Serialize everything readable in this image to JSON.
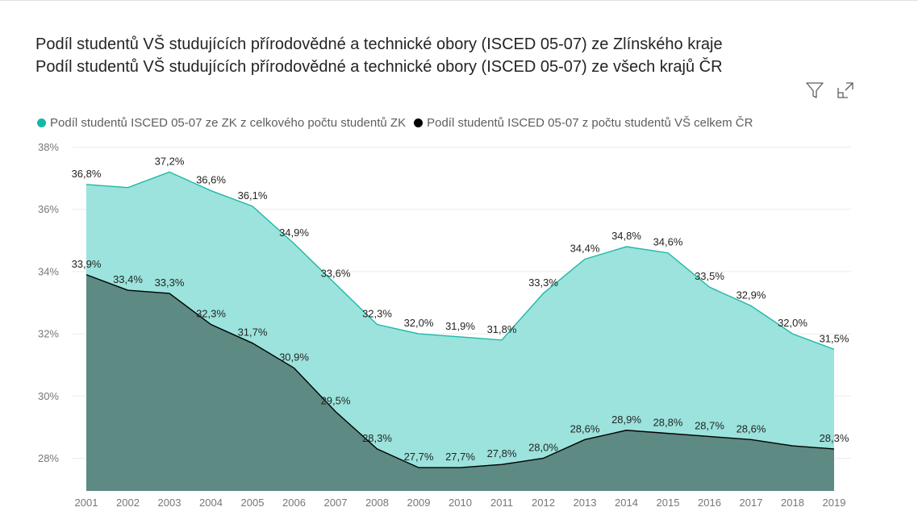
{
  "header": {
    "title_line_1": "Podíl studentů VŠ studujících přírodovědné a technické obory (ISCED 05-07) ze Zlínského kraje",
    "title_line_2": "Podíl studentů VŠ studujících přírodovědné a technické obory (ISCED 05-07) ze všech krajů ČR",
    "filter_icon": "filter-icon",
    "focus_icon": "focus-mode-icon"
  },
  "legend": {
    "items": [
      {
        "label": "Podíl studentů ISCED 05-07 ze ZK z celkového počtu studentů ZK",
        "color": "#14b8a6"
      },
      {
        "label": "Podíl studentů ISCED 05-07 z počtu studentů VŠ celkem ČR",
        "color": "#000000"
      }
    ]
  },
  "chart_data": {
    "type": "area",
    "x": [
      "2001",
      "2002",
      "2003",
      "2004",
      "2005",
      "2006",
      "2007",
      "2008",
      "2009",
      "2010",
      "2011",
      "2012",
      "2013",
      "2014",
      "2015",
      "2016",
      "2017",
      "2018",
      "2019"
    ],
    "ylim": [
      27,
      38
    ],
    "y_ticks": [
      28,
      30,
      32,
      34,
      36,
      38
    ],
    "y_tick_labels": [
      "28%",
      "30%",
      "32%",
      "34%",
      "36%",
      "38%"
    ],
    "grid": true,
    "legend_position": "top-left",
    "series": [
      {
        "name": "Podíl studentů ISCED 05-07 ze ZK z celkového počtu studentů ZK",
        "color": "#1fb8a8",
        "fill": "#9be3dc",
        "values": [
          36.8,
          36.7,
          37.2,
          36.6,
          36.1,
          34.9,
          33.6,
          32.3,
          32.0,
          31.9,
          31.8,
          33.3,
          34.4,
          34.8,
          34.6,
          33.5,
          32.9,
          32.0,
          31.5
        ],
        "labels": [
          "36,8%",
          null,
          "37,2%",
          "36,6%",
          "36,1%",
          "34,9%",
          "33,6%",
          "32,3%",
          "32,0%",
          "31,9%",
          "31,8%",
          "33,3%",
          "34,4%",
          "34,8%",
          "34,6%",
          "33,5%",
          "32,9%",
          "32,0%",
          "31,5%"
        ]
      },
      {
        "name": "Podíl studentů ISCED 05-07 z počtu studentů VŠ celkem ČR",
        "color": "#000000",
        "fill": "#5d8a83",
        "values": [
          33.9,
          33.4,
          33.3,
          32.3,
          31.7,
          30.9,
          29.5,
          28.3,
          27.7,
          27.7,
          27.8,
          28.0,
          28.6,
          28.9,
          28.8,
          28.7,
          28.6,
          28.4,
          28.3
        ],
        "labels": [
          "33,9%",
          "33,4%",
          "33,3%",
          "32,3%",
          "31,7%",
          "30,9%",
          "29,5%",
          "28,3%",
          "27,7%",
          "27,7%",
          "27,8%",
          "28,0%",
          "28,6%",
          "28,9%",
          "28,8%",
          "28,7%",
          "28,6%",
          null,
          "28,3%"
        ]
      }
    ]
  }
}
